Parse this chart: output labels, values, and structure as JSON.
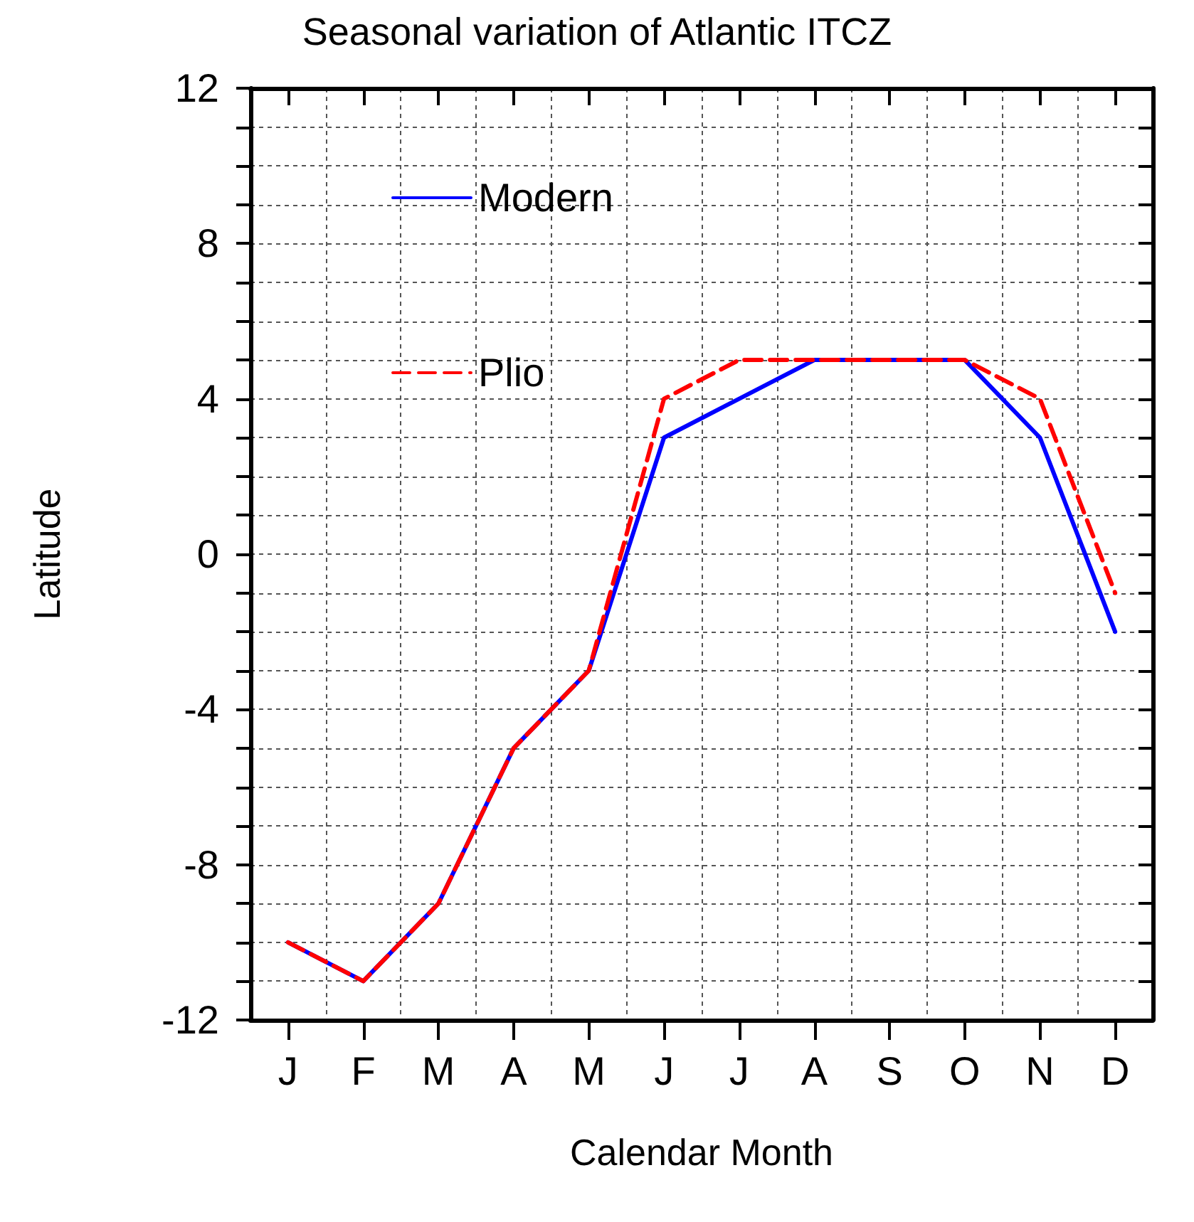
{
  "chart_data": {
    "type": "line",
    "title": "Seasonal variation of Atlantic ITCZ",
    "xlabel": "Calendar Month",
    "ylabel": "Latitude",
    "categories": [
      "J",
      "F",
      "M",
      "A",
      "M",
      "J",
      "J",
      "A",
      "S",
      "O",
      "N",
      "D"
    ],
    "series": [
      {
        "name": "Modern",
        "color": "#0000ff",
        "line_style": "solid",
        "values": [
          -10,
          -11,
          -9,
          -5,
          -3,
          3,
          4,
          5,
          5,
          5,
          3,
          -2
        ]
      },
      {
        "name": "Plio",
        "color": "#ff0000",
        "line_style": "dashed",
        "values": [
          -10,
          -11,
          -9,
          -5,
          -3,
          4,
          5,
          5,
          5,
          5,
          4,
          -1
        ]
      }
    ],
    "ylim": [
      -12,
      12
    ],
    "yticks": [
      -12,
      {
        "value": -11,
        "label": null
      },
      {
        "value": -10,
        "label": null
      },
      {
        "value": -9,
        "label": null
      },
      -8,
      {
        "value": -7,
        "label": null
      },
      {
        "value": -6,
        "label": null
      },
      {
        "value": -5,
        "label": null
      },
      -4,
      {
        "value": -3,
        "label": null
      },
      {
        "value": -2,
        "label": null
      },
      {
        "value": -1,
        "label": null
      },
      0,
      {
        "value": 1,
        "label": null
      },
      {
        "value": 2,
        "label": null
      },
      {
        "value": 3,
        "label": null
      },
      4,
      {
        "value": 5,
        "label": null
      },
      {
        "value": 6,
        "label": null
      },
      {
        "value": 7,
        "label": null
      },
      8,
      {
        "value": 9,
        "label": null
      },
      {
        "value": 10,
        "label": null
      },
      {
        "value": 11,
        "label": null
      },
      12
    ],
    "grid": true,
    "legend": "top left",
    "marker": "none"
  }
}
